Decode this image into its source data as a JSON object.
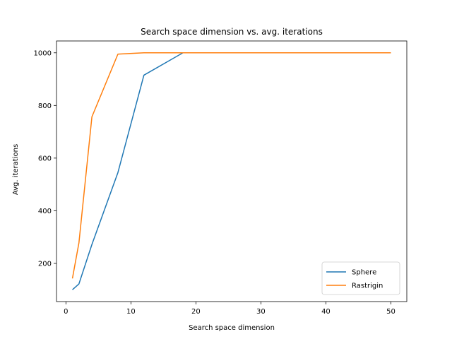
{
  "chart_data": {
    "type": "line",
    "title": "Search space dimension vs. avg. iterations",
    "xlabel": "Search space dimension",
    "ylabel": "Avg. iterations",
    "xlim": [
      -1.45,
      52.45
    ],
    "ylim": [
      55,
      1045
    ],
    "xticks": [
      0,
      10,
      20,
      30,
      40,
      50
    ],
    "yticks": [
      200,
      400,
      600,
      800,
      1000
    ],
    "grid": false,
    "legend_position": "lower right",
    "series": [
      {
        "name": "Sphere",
        "color": "#1f77b4",
        "x": [
          1,
          2,
          4,
          8,
          12,
          18,
          25,
          50
        ],
        "y": [
          100,
          122,
          272,
          545,
          915,
          1000,
          1000,
          1000
        ]
      },
      {
        "name": "Rastrigin",
        "color": "#ff7f0e",
        "x": [
          1,
          2,
          4,
          8,
          12,
          18,
          25,
          50
        ],
        "y": [
          143,
          278,
          757,
          995,
          1000,
          1000,
          1000,
          1000
        ]
      }
    ]
  }
}
